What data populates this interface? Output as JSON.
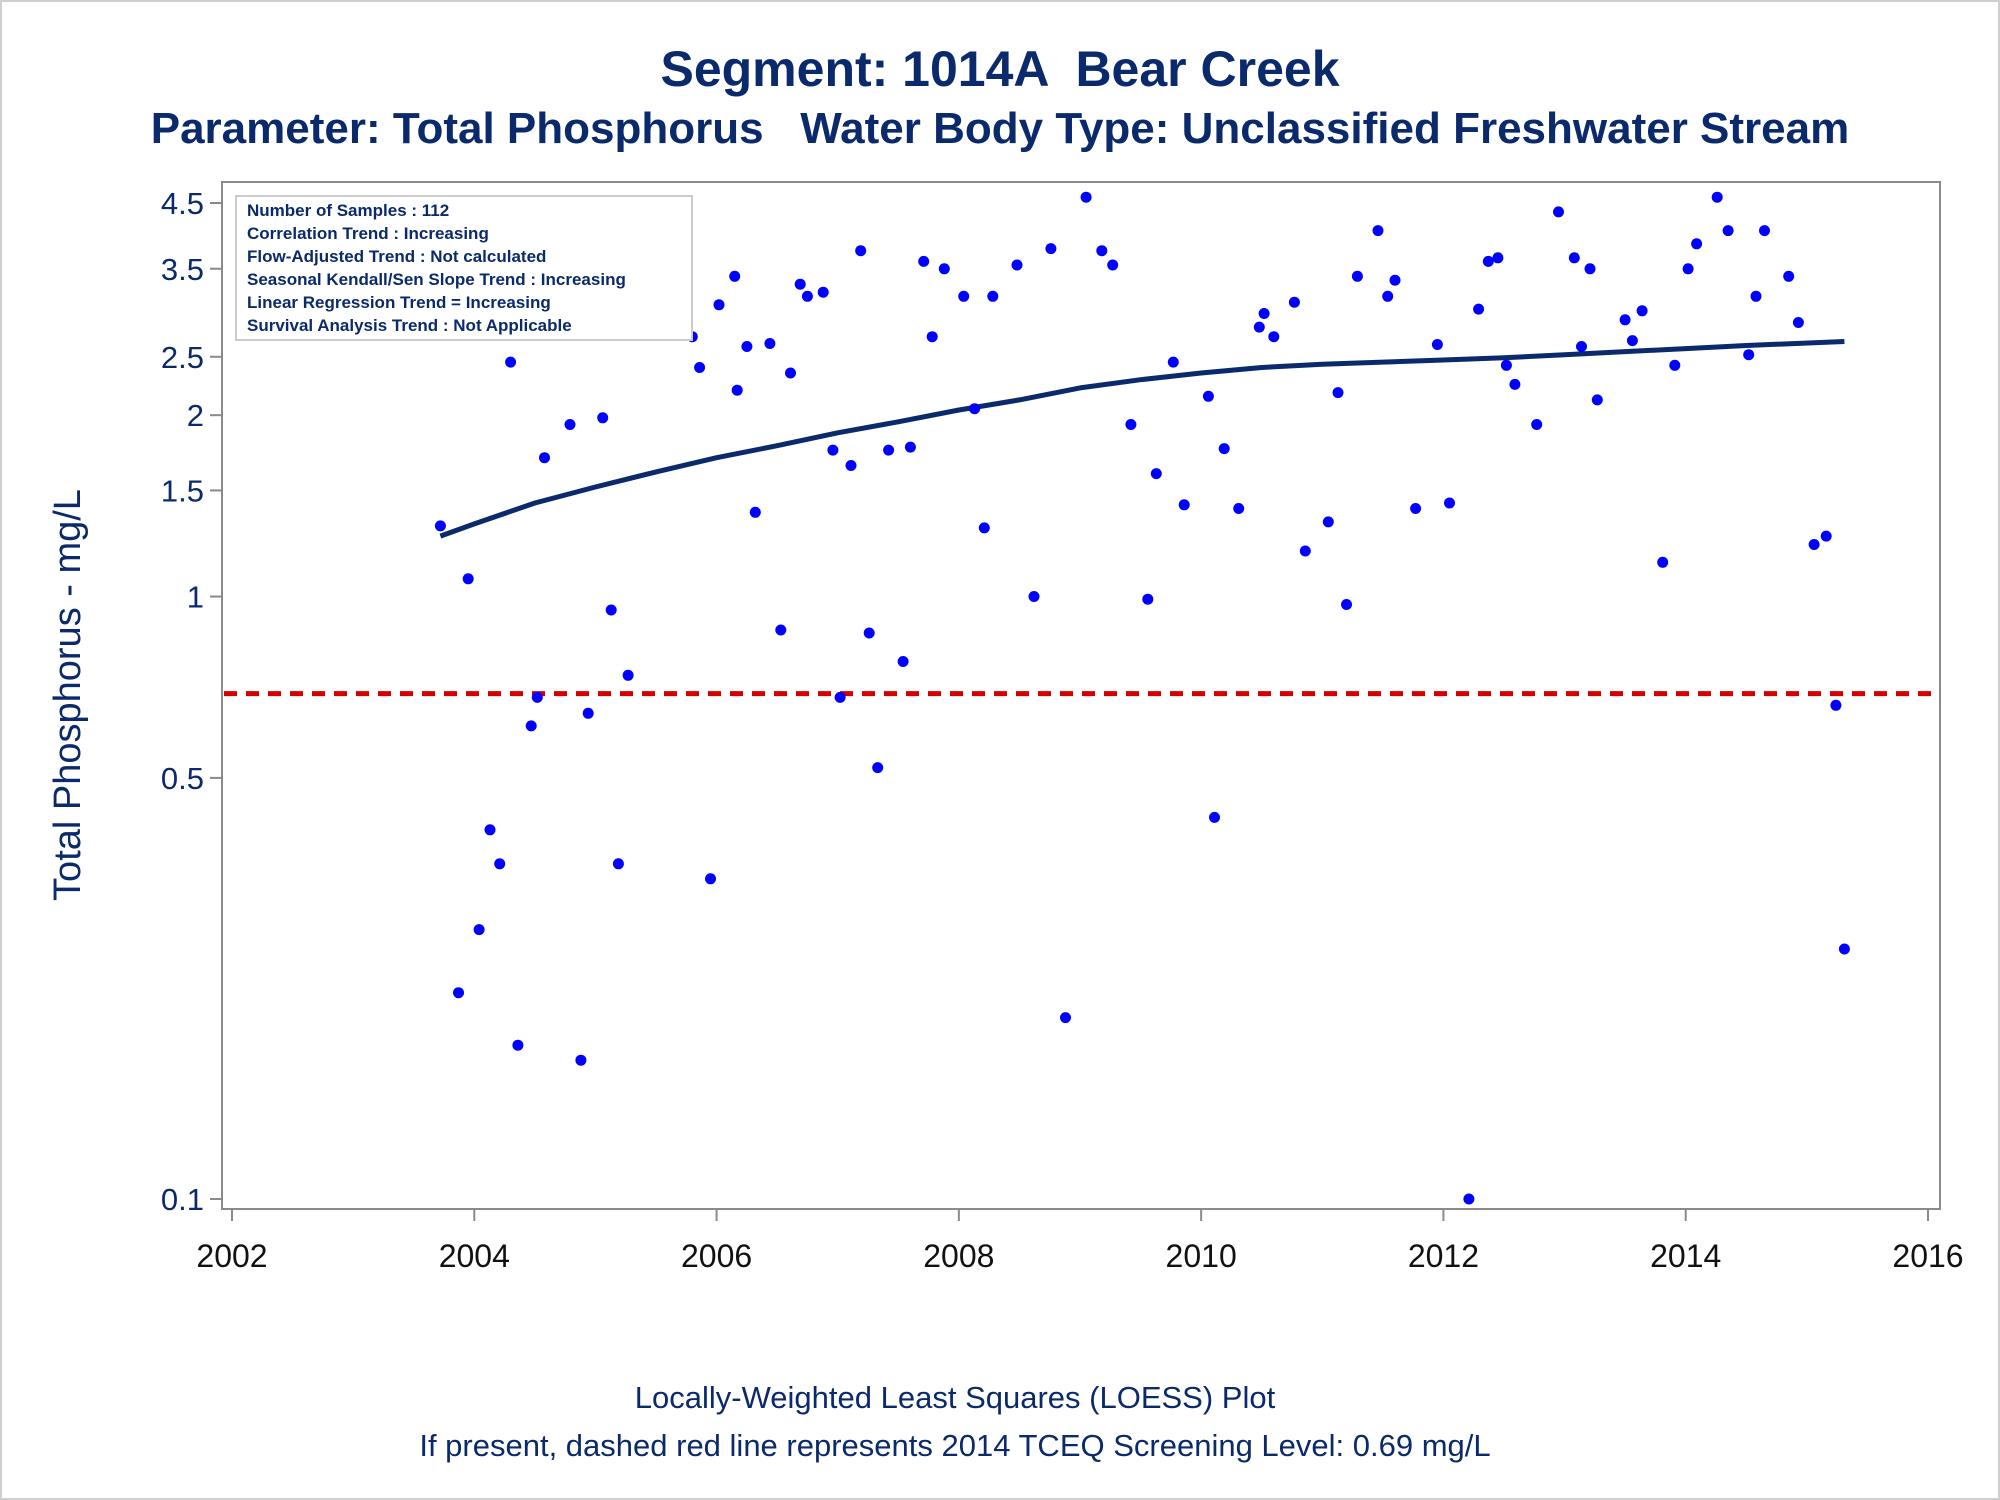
{
  "page": {
    "title": "Segment: 1014A  Bear Creek",
    "subtitle": "Parameter: Total Phosphorus   Water Body Type: Unclassified Freshwater Stream",
    "footer_line1": "Locally-Weighted Least Squares (LOESS) Plot",
    "footer_line2": "If present, dashed red line represents 2014 TCEQ Screening Level: 0.69 mg/L"
  },
  "info_box": [
    "Number of Samples : 112",
    "Correlation Trend : Increasing",
    "Flow-Adjusted Trend : Not calculated",
    "Seasonal Kendall/Sen Slope Trend : Increasing",
    "Linear Regression Trend = Increasing",
    "Survival Analysis Trend : Not Applicable"
  ],
  "colors": {
    "points": "#0000ff",
    "loess": "#0b2a6b",
    "screening": "#d40000",
    "text": "#0b2a6b",
    "axis": "#8a8a8a"
  },
  "chart_data": {
    "type": "scatter",
    "title": "Segment: 1014A  Bear Creek",
    "subtitle": "Parameter: Total Phosphorus   Water Body Type: Unclassified Freshwater Stream",
    "xlabel": "",
    "ylabel": "Total Phosphorus - mg/L",
    "x_scale": "linear",
    "y_scale": "log",
    "xlim": [
      2002,
      2016
    ],
    "ylim": [
      0.1,
      4.5
    ],
    "x_ticks": [
      2002,
      2004,
      2006,
      2008,
      2010,
      2012,
      2014,
      2016
    ],
    "y_ticks": [
      0.1,
      0.5,
      1,
      1.5,
      2,
      2.5,
      3.5,
      4.5
    ],
    "y_tick_labels": [
      "0.1",
      "0.5",
      "1",
      "1.5",
      "2",
      "2.5",
      "3.5",
      "4.5"
    ],
    "grid": false,
    "legend": "none",
    "screening_level": 0.69,
    "series": [
      {
        "type": "scatter",
        "points": [
          [
            2003.72,
            1.31
          ],
          [
            2003.87,
            0.22
          ],
          [
            2003.95,
            1.07
          ],
          [
            2004.04,
            0.28
          ],
          [
            2004.13,
            0.41
          ],
          [
            2004.21,
            0.36
          ],
          [
            2004.3,
            2.45
          ],
          [
            2004.36,
            0.18
          ],
          [
            2004.47,
            0.61
          ],
          [
            2004.52,
            0.68
          ],
          [
            2004.58,
            1.7
          ],
          [
            2004.73,
            2.85
          ],
          [
            2004.79,
            1.93
          ],
          [
            2004.88,
            0.17
          ],
          [
            2004.94,
            0.64
          ],
          [
            2005.06,
            1.98
          ],
          [
            2005.13,
            0.95
          ],
          [
            2005.19,
            0.36
          ],
          [
            2005.27,
            0.74
          ],
          [
            2005.38,
            2.8
          ],
          [
            2005.68,
            3.0
          ],
          [
            2005.8,
            2.7
          ],
          [
            2005.86,
            2.4
          ],
          [
            2005.95,
            0.34
          ],
          [
            2006.02,
            3.05
          ],
          [
            2006.15,
            3.4
          ],
          [
            2006.17,
            2.2
          ],
          [
            2006.25,
            2.6
          ],
          [
            2006.32,
            1.38
          ],
          [
            2006.44,
            2.63
          ],
          [
            2006.53,
            0.88
          ],
          [
            2006.61,
            2.35
          ],
          [
            2006.69,
            3.3
          ],
          [
            2006.75,
            3.15
          ],
          [
            2006.88,
            3.2
          ],
          [
            2006.96,
            1.75
          ],
          [
            2007.02,
            0.68
          ],
          [
            2007.11,
            1.65
          ],
          [
            2007.19,
            3.75
          ],
          [
            2007.26,
            0.87
          ],
          [
            2007.33,
            0.52
          ],
          [
            2007.42,
            1.75
          ],
          [
            2007.54,
            0.78
          ],
          [
            2007.6,
            1.77
          ],
          [
            2007.71,
            3.6
          ],
          [
            2007.78,
            2.7
          ],
          [
            2007.88,
            3.5
          ],
          [
            2008.04,
            3.15
          ],
          [
            2008.13,
            2.05
          ],
          [
            2008.21,
            1.3
          ],
          [
            2008.28,
            3.15
          ],
          [
            2008.48,
            3.55
          ],
          [
            2008.62,
            1.0
          ],
          [
            2008.76,
            3.78
          ],
          [
            2008.88,
            0.2
          ],
          [
            2009.05,
            4.6
          ],
          [
            2009.18,
            3.75
          ],
          [
            2009.27,
            3.55
          ],
          [
            2009.42,
            1.93
          ],
          [
            2009.56,
            0.99
          ],
          [
            2009.63,
            1.6
          ],
          [
            2009.77,
            2.45
          ],
          [
            2009.86,
            1.42
          ],
          [
            2010.06,
            2.15
          ],
          [
            2010.11,
            0.43
          ],
          [
            2010.19,
            1.76
          ],
          [
            2010.31,
            1.4
          ],
          [
            2010.48,
            2.8
          ],
          [
            2010.52,
            2.95
          ],
          [
            2010.6,
            2.7
          ],
          [
            2010.77,
            3.08
          ],
          [
            2010.86,
            1.19
          ],
          [
            2011.05,
            1.33
          ],
          [
            2011.13,
            2.18
          ],
          [
            2011.2,
            0.97
          ],
          [
            2011.29,
            3.4
          ],
          [
            2011.46,
            4.05
          ],
          [
            2011.54,
            3.15
          ],
          [
            2011.6,
            3.35
          ],
          [
            2011.77,
            1.4
          ],
          [
            2011.95,
            2.62
          ],
          [
            2012.05,
            1.43
          ],
          [
            2012.21,
            0.1
          ],
          [
            2012.29,
            3.0
          ],
          [
            2012.37,
            3.6
          ],
          [
            2012.45,
            3.65
          ],
          [
            2012.52,
            2.42
          ],
          [
            2012.59,
            2.25
          ],
          [
            2012.77,
            1.93
          ],
          [
            2012.95,
            4.35
          ],
          [
            2013.08,
            3.65
          ],
          [
            2013.14,
            2.6
          ],
          [
            2013.21,
            3.5
          ],
          [
            2013.27,
            2.12
          ],
          [
            2013.5,
            2.88
          ],
          [
            2013.56,
            2.66
          ],
          [
            2013.64,
            2.98
          ],
          [
            2013.81,
            1.14
          ],
          [
            2013.91,
            2.42
          ],
          [
            2014.02,
            3.5
          ],
          [
            2014.09,
            3.85
          ],
          [
            2014.26,
            4.6
          ],
          [
            2014.35,
            4.05
          ],
          [
            2014.52,
            2.52
          ],
          [
            2014.58,
            3.15
          ],
          [
            2014.65,
            4.05
          ],
          [
            2014.85,
            3.4
          ],
          [
            2014.93,
            2.85
          ],
          [
            2015.06,
            1.22
          ],
          [
            2015.16,
            1.26
          ],
          [
            2015.24,
            0.66
          ],
          [
            2015.31,
            0.26
          ]
        ]
      },
      {
        "type": "line",
        "points": [
          [
            2003.72,
            1.26
          ],
          [
            2004.0,
            1.32
          ],
          [
            2004.5,
            1.43
          ],
          [
            2005.0,
            1.52
          ],
          [
            2005.5,
            1.61
          ],
          [
            2006.0,
            1.7
          ],
          [
            2006.5,
            1.78
          ],
          [
            2007.0,
            1.87
          ],
          [
            2007.5,
            1.95
          ],
          [
            2008.0,
            2.04
          ],
          [
            2008.5,
            2.12
          ],
          [
            2009.0,
            2.22
          ],
          [
            2009.5,
            2.29
          ],
          [
            2010.0,
            2.35
          ],
          [
            2010.5,
            2.4
          ],
          [
            2011.0,
            2.43
          ],
          [
            2011.5,
            2.45
          ],
          [
            2012.0,
            2.47
          ],
          [
            2012.5,
            2.49
          ],
          [
            2013.0,
            2.52
          ],
          [
            2013.5,
            2.55
          ],
          [
            2014.0,
            2.58
          ],
          [
            2014.5,
            2.61
          ],
          [
            2015.31,
            2.65
          ]
        ]
      },
      {
        "type": "reference-line",
        "y": 0.69
      }
    ]
  }
}
